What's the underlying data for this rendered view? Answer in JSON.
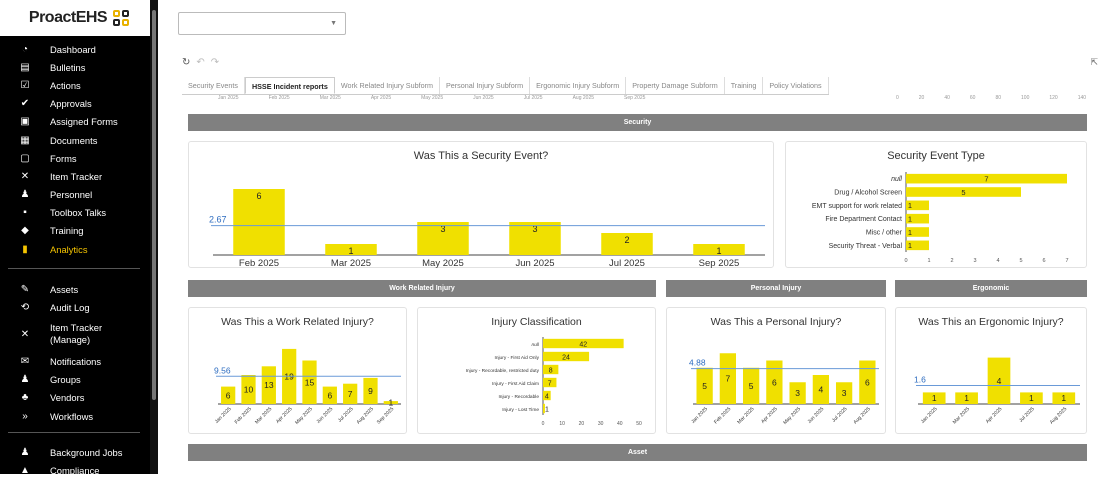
{
  "brand": {
    "name": "ProactEHS"
  },
  "nav": [
    {
      "label": "Dashboard",
      "icon": "dashboard-icon",
      "glyph": "◔"
    },
    {
      "label": "Bulletins",
      "icon": "clipboard-icon",
      "glyph": "▤"
    },
    {
      "label": "Actions",
      "icon": "checkbox-icon",
      "glyph": "☑"
    },
    {
      "label": "Approvals",
      "icon": "approve-check-icon",
      "glyph": "✔"
    },
    {
      "label": "Assigned Forms",
      "icon": "assigned-forms-icon",
      "glyph": "▣"
    },
    {
      "label": "Documents",
      "icon": "document-icon",
      "glyph": "▦"
    },
    {
      "label": "Forms",
      "icon": "forms-icon",
      "glyph": "▢"
    },
    {
      "label": "Item Tracker",
      "icon": "tools-icon",
      "glyph": "✕"
    },
    {
      "label": "Personnel",
      "icon": "people-icon",
      "glyph": "♟"
    },
    {
      "label": "Toolbox Talks",
      "icon": "chat-alert-icon",
      "glyph": "▪"
    },
    {
      "label": "Training",
      "icon": "graduation-cap-icon",
      "glyph": "◆"
    },
    {
      "label": "Analytics",
      "icon": "analytics-icon",
      "glyph": "▮",
      "active": true
    }
  ],
  "nav2": [
    {
      "label": "Assets",
      "icon": "wrench-icon",
      "glyph": "✎"
    },
    {
      "label": "Audit Log",
      "icon": "audit-log-icon",
      "glyph": "⟲"
    },
    {
      "label": "Item Tracker\n(Manage)",
      "icon": "tools-manage-icon",
      "glyph": "✕",
      "tall": true
    },
    {
      "label": "Notifications",
      "icon": "mail-icon",
      "glyph": "✉"
    },
    {
      "label": "Groups",
      "icon": "groups-icon",
      "glyph": "♟"
    },
    {
      "label": "Vendors",
      "icon": "vendors-icon",
      "glyph": "♣"
    },
    {
      "label": "Workflows",
      "icon": "workflows-icon",
      "glyph": "»"
    }
  ],
  "nav3": [
    {
      "label": "Background Jobs",
      "icon": "background-jobs-icon",
      "glyph": "♟"
    },
    {
      "label": "Compliance",
      "icon": "compliance-icon",
      "glyph": "▲"
    }
  ],
  "filter": {
    "value": ""
  },
  "tabs": [
    {
      "label": "Security Events"
    },
    {
      "label": "HSSE Incident reports",
      "active": true
    },
    {
      "label": "Work Related Injury Subform"
    },
    {
      "label": "Personal Injury Subform"
    },
    {
      "label": "Ergonomic Injury Subform"
    },
    {
      "label": "Property Damage Subform"
    },
    {
      "label": "Training"
    },
    {
      "label": "Policy Violations"
    }
  ],
  "strip_left": [
    "Jan 2025",
    "Feb 2025",
    "Mar 2025",
    "Apr 2025",
    "May 2025",
    "Jun 2025",
    "Jul 2025",
    "Aug 2025",
    "Sep 2025"
  ],
  "strip_right": [
    "0",
    "20",
    "40",
    "60",
    "80",
    "100",
    "120",
    "140"
  ],
  "sections": {
    "security": "Security",
    "work_related": "Work Related Injury",
    "personal": "Personal Injury",
    "ergonomic": "Ergonomic",
    "asset": "Asset"
  },
  "colors": {
    "bar": "#f0e000",
    "ref": "#6a9ad8",
    "section": "#808080"
  },
  "chart_data": [
    {
      "type": "bar",
      "title": "Was This a Security Event?",
      "categories": [
        "Feb 2025",
        "Mar 2025",
        "May 2025",
        "Jun 2025",
        "Jul 2025",
        "Sep 2025"
      ],
      "values": [
        6,
        1,
        3,
        3,
        2,
        1
      ],
      "reference": 2.67,
      "reference_label": "2.67",
      "ylim": [
        0,
        7
      ]
    },
    {
      "type": "bar",
      "orientation": "horizontal",
      "title": "Security Event Type",
      "categories": [
        "null",
        "Drug / Alcohol Screen",
        "EMT support for work related",
        "Fire Department Contact",
        "Misc / other",
        "Security Threat - Verbal"
      ],
      "values": [
        7,
        5,
        1,
        1,
        1,
        1
      ],
      "xticks": [
        "0",
        "1",
        "2",
        "3",
        "4",
        "5",
        "6",
        "7"
      ],
      "xlim": [
        0,
        7
      ]
    },
    {
      "type": "bar",
      "title": "Was This a Work Related Injury?",
      "categories": [
        "Jan 2025",
        "Feb 2025",
        "Mar 2025",
        "Apr 2025",
        "May 2025",
        "Jun 2025",
        "Jul 2025",
        "Aug 2025",
        "Sep 2025"
      ],
      "values": [
        6,
        10,
        13,
        19,
        15,
        6,
        7,
        9,
        1
      ],
      "reference": 9.56,
      "reference_label": "9.56",
      "ylim": [
        0,
        20
      ]
    },
    {
      "type": "bar",
      "orientation": "horizontal",
      "title": "Injury Classification",
      "categories": [
        "null",
        "Injury - First Aid Only",
        "Injury - Recordable, restricted duty",
        "Injury - First Aid Claim",
        "Injury - Recordable",
        "Injury - Lost Time"
      ],
      "values": [
        42,
        24,
        8,
        7,
        4,
        1
      ],
      "xticks": [
        "0",
        "10",
        "20",
        "30",
        "40",
        "50"
      ],
      "xlim": [
        0,
        50
      ]
    },
    {
      "type": "bar",
      "title": "Was This a Personal Injury?",
      "categories": [
        "Jan 2025",
        "Feb 2025",
        "Mar 2025",
        "Apr 2025",
        "May 2025",
        "Jun 2025",
        "Jul 2025",
        "Aug 2025"
      ],
      "values": [
        5,
        7,
        5,
        6,
        3,
        4,
        3,
        6
      ],
      "reference": 4.88,
      "reference_label": "4.88",
      "ylim": [
        0,
        8
      ]
    },
    {
      "type": "bar",
      "title": "Was This an Ergonomic Injury?",
      "categories": [
        "Jan 2025",
        "Mar 2025",
        "Apr 2025",
        "Jul 2025",
        "Aug 2025"
      ],
      "values": [
        1,
        1,
        4,
        1,
        1
      ],
      "reference": 1.6,
      "reference_label": "1.6",
      "ylim": [
        0,
        5
      ]
    }
  ]
}
